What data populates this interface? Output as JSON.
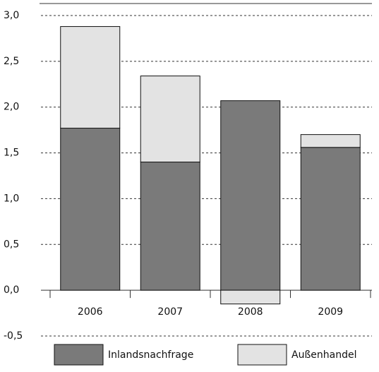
{
  "chart_data": {
    "type": "stacked-bar",
    "categories": [
      "2006",
      "2007",
      "2008",
      "2009"
    ],
    "series": [
      {
        "name": "Inlandsnachfrage",
        "color": "#7a7a7a",
        "values": [
          1.77,
          1.4,
          2.07,
          1.56
        ]
      },
      {
        "name": "Außenhandel",
        "color": "#e3e3e3",
        "values": [
          1.11,
          0.94,
          -0.15,
          0.14
        ]
      }
    ],
    "ylim": [
      -0.5,
      3.0
    ],
    "yticks": [
      {
        "value": -0.5,
        "label": "-0,5"
      },
      {
        "value": 0,
        "label": "0,0"
      },
      {
        "value": 0.5,
        "label": "0,5"
      },
      {
        "value": 1.0,
        "label": "1,0"
      },
      {
        "value": 1.5,
        "label": "1,5"
      },
      {
        "value": 2.0,
        "label": "2,0"
      },
      {
        "value": 2.5,
        "label": "2,5"
      },
      {
        "value": 3.0,
        "label": "3,0"
      }
    ],
    "grid": true,
    "legend": "bottom"
  }
}
